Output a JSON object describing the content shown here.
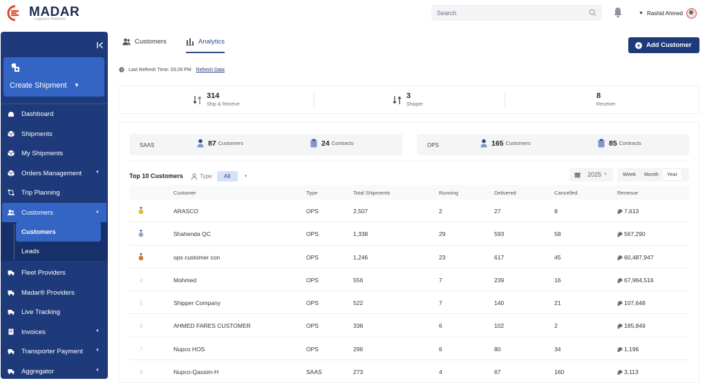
{
  "brand": {
    "name": "MADAR",
    "tagline": "Logistics Platform"
  },
  "header": {
    "search_placeholder": "Search",
    "user_name": "Rashid Ahmed"
  },
  "sidebar": {
    "create_label": "Create Shipment",
    "items": [
      {
        "label": "Dashboard",
        "icon": "dashboard-icon"
      },
      {
        "label": "Shipments",
        "icon": "box-icon"
      },
      {
        "label": "My Shipments",
        "icon": "box-icon"
      },
      {
        "label": "Orders Management",
        "icon": "orders-icon"
      },
      {
        "label": "Trip Planning",
        "icon": "route-icon"
      },
      {
        "label": "Customers",
        "icon": "users-icon"
      },
      {
        "label": "Fleet Providers",
        "icon": "truck-icon"
      },
      {
        "label": "Madar® Providers",
        "icon": "truck-icon"
      },
      {
        "label": "Live Tracking",
        "icon": "truck-icon"
      },
      {
        "label": "Invoices",
        "icon": "invoice-icon"
      },
      {
        "label": "Transporter Payment",
        "icon": "truck-icon"
      },
      {
        "label": "Aggregator",
        "icon": "truck-icon"
      }
    ],
    "sub_items": [
      {
        "label": "Customers"
      },
      {
        "label": "Leads"
      }
    ]
  },
  "tabs": [
    {
      "label": "Customers"
    },
    {
      "label": "Analytics"
    }
  ],
  "add_button": "Add Customer",
  "refresh": {
    "label": "Last Refresh Time: 03:26 PM",
    "link": "Refresh Data"
  },
  "summary": [
    {
      "value": "314",
      "caption": "Ship & Receive"
    },
    {
      "value": "3",
      "caption": "Shipper"
    },
    {
      "value": "8",
      "caption": "Receiver"
    }
  ],
  "stats": {
    "saas": {
      "name": "SAAS",
      "customers": "87",
      "customers_label": "Customers",
      "contracts": "24",
      "contracts_label": "Contracts"
    },
    "ops": {
      "name": "OPS",
      "customers": "165",
      "customers_label": "Customers",
      "contracts": "85",
      "contracts_label": "Contracts"
    }
  },
  "table": {
    "title": "Top 10 Customers",
    "type_label": "Type:",
    "type_value": "All",
    "year": "2025",
    "periods": [
      "Week",
      "Month",
      "Year"
    ],
    "columns": [
      "Customer",
      "Type",
      "Total Shipments",
      "Running",
      "Delivered",
      "Cancelled",
      "Revenue"
    ],
    "rows": [
      {
        "rank": "1",
        "medal": "gold",
        "customer": "ARASCO",
        "type": "OPS",
        "total": "2,507",
        "running": "2",
        "delivered": "27",
        "cancelled": "8",
        "revenue": "7,613"
      },
      {
        "rank": "2",
        "medal": "silver",
        "customer": "Shahenda QC",
        "type": "OPS",
        "total": "1,338",
        "running": "29",
        "delivered": "593",
        "cancelled": "58",
        "revenue": "567,290"
      },
      {
        "rank": "3",
        "medal": "bronze",
        "customer": "ops customer con",
        "type": "OPS",
        "total": "1,246",
        "running": "23",
        "delivered": "617",
        "cancelled": "45",
        "revenue": "60,487,947"
      },
      {
        "rank": "4",
        "customer": "Mohmed",
        "type": "OPS",
        "total": "556",
        "running": "7",
        "delivered": "239",
        "cancelled": "16",
        "revenue": "67,964,516"
      },
      {
        "rank": "5",
        "customer": "Shipper Company",
        "type": "OPS",
        "total": "522",
        "running": "7",
        "delivered": "140",
        "cancelled": "21",
        "revenue": "107,648"
      },
      {
        "rank": "6",
        "customer": "AHMED FARES CUSTOMER",
        "type": "OPS",
        "total": "338",
        "running": "6",
        "delivered": "102",
        "cancelled": "2",
        "revenue": "185,849"
      },
      {
        "rank": "7",
        "customer": "Nupco HOS",
        "type": "OPS",
        "total": "296",
        "running": "6",
        "delivered": "80",
        "cancelled": "34",
        "revenue": "1,196"
      },
      {
        "rank": "8",
        "customer": "Nupco-Qassim-H",
        "type": "SAAS",
        "total": "273",
        "running": "4",
        "delivered": "67",
        "cancelled": "160",
        "revenue": "3,113"
      }
    ]
  },
  "colors": {
    "primary": "#1e3a7a",
    "accent": "#3465c5",
    "brand_red": "#e2432b"
  }
}
